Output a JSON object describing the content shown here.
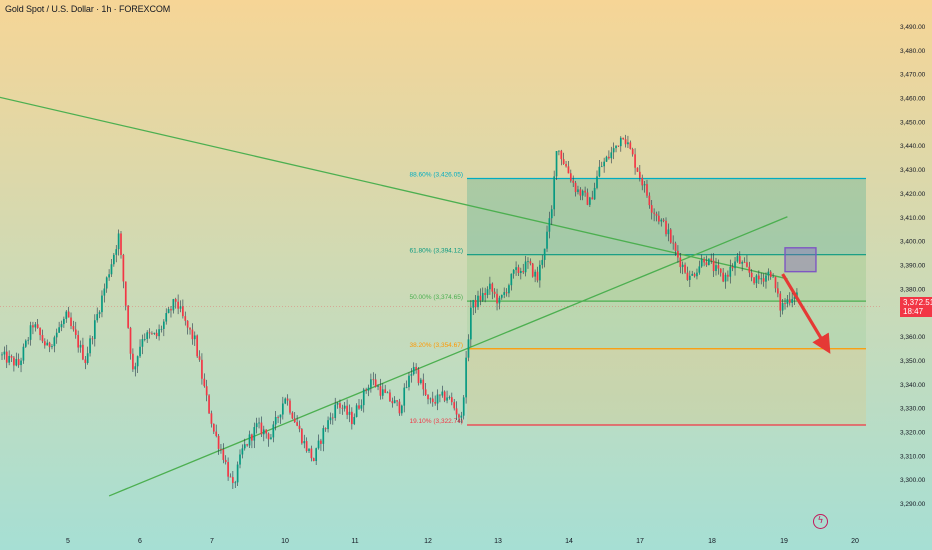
{
  "header": {
    "title": "Gold Spot / U.S. Dollar · 1h · FOREXCOM"
  },
  "colors": {
    "up": "#089981",
    "down": "#f23645",
    "wick": "#26394a",
    "bg_top": "#f6d596",
    "bg_bottom": "#a6dfd4"
  },
  "chart_data": {
    "type": "candlestick",
    "y_axis": {
      "min": 3285,
      "max": 3495,
      "position": "right",
      "ticks": [
        "3,490.00",
        "3,480.00",
        "3,470.00",
        "3,460.00",
        "3,450.00",
        "3,440.00",
        "3,430.00",
        "3,420.00",
        "3,410.00",
        "3,400.00",
        "3,390.00",
        "3,380.00",
        "3,370.00",
        "3,360.00",
        "3,350.00",
        "3,340.00",
        "3,330.00",
        "3,320.00",
        "3,310.00",
        "3,300.00",
        "3,290.00"
      ]
    },
    "x_axis": {
      "ticks": [
        "5",
        "6",
        "7",
        "10",
        "11",
        "12",
        "13",
        "14",
        "17",
        "18",
        "19",
        "20"
      ]
    },
    "last_price": {
      "value": "3,372.51",
      "countdown": "18:47"
    },
    "fibonacci": [
      {
        "level": "88.60% (3,426.05)",
        "price": 3426.05,
        "color": "#00acc1"
      },
      {
        "level": "61.80% (3,394.12)",
        "price": 3394.12,
        "color": "#089981"
      },
      {
        "level": "50.00% (3,374.65)",
        "price": 3374.65,
        "color": "#4caf50"
      },
      {
        "level": "38.20% (3,354.67)",
        "price": 3354.67,
        "color": "#ff9800"
      },
      {
        "level": "19.10% (3,322.74)",
        "price": 3322.74,
        "color": "#f23645"
      }
    ],
    "trendlines": [
      {
        "name": "descending",
        "from": {
          "bar": -18,
          "price": 3464
        },
        "to": {
          "bar": 330,
          "price": 3384
        },
        "color": "#4caf50"
      },
      {
        "name": "ascending",
        "from": {
          "bar": 45,
          "price": 3293
        },
        "to": {
          "bar": 330,
          "price": 3410
        },
        "color": "#4caf50"
      }
    ],
    "anchors": [
      [
        0,
        3352
      ],
      [
        8,
        3348
      ],
      [
        14,
        3365
      ],
      [
        20,
        3355
      ],
      [
        28,
        3368
      ],
      [
        36,
        3350
      ],
      [
        44,
        3380
      ],
      [
        50,
        3402
      ],
      [
        56,
        3345
      ],
      [
        60,
        3360
      ],
      [
        66,
        3360
      ],
      [
        74,
        3375
      ],
      [
        78,
        3365
      ],
      [
        82,
        3358
      ],
      [
        86,
        3338
      ],
      [
        90,
        3320
      ],
      [
        94,
        3310
      ],
      [
        98,
        3296
      ],
      [
        102,
        3312
      ],
      [
        108,
        3322
      ],
      [
        114,
        3318
      ],
      [
        120,
        3335
      ],
      [
        124,
        3325
      ],
      [
        128,
        3315
      ],
      [
        132,
        3308
      ],
      [
        136,
        3320
      ],
      [
        142,
        3332
      ],
      [
        148,
        3325
      ],
      [
        156,
        3342
      ],
      [
        162,
        3335
      ],
      [
        168,
        3330
      ],
      [
        174,
        3348
      ],
      [
        180,
        3332
      ],
      [
        188,
        3335
      ],
      [
        194,
        3325
      ],
      [
        198,
        3372
      ],
      [
        206,
        3380
      ],
      [
        210,
        3374
      ],
      [
        216,
        3386
      ],
      [
        222,
        3390
      ],
      [
        226,
        3384
      ],
      [
        232,
        3412
      ],
      [
        234,
        3440
      ],
      [
        242,
        3422
      ],
      [
        248,
        3416
      ],
      [
        252,
        3430
      ],
      [
        258,
        3438
      ],
      [
        262,
        3445
      ],
      [
        268,
        3430
      ],
      [
        274,
        3414
      ],
      [
        280,
        3405
      ],
      [
        284,
        3395
      ],
      [
        290,
        3384
      ],
      [
        296,
        3393
      ],
      [
        304,
        3384
      ],
      [
        310,
        3392
      ],
      [
        318,
        3383
      ],
      [
        324,
        3387
      ],
      [
        328,
        3372
      ],
      [
        334,
        3378
      ]
    ],
    "projection_arrow": {
      "from": {
        "bar": 328,
        "price": 3386
      },
      "to": {
        "bar": 346,
        "price": 3356
      },
      "color": "#e53935"
    },
    "highlight_box": {
      "from_bar": 329,
      "to_bar": 342,
      "low": 3387,
      "high": 3394,
      "color": "#7e57c2"
    }
  }
}
